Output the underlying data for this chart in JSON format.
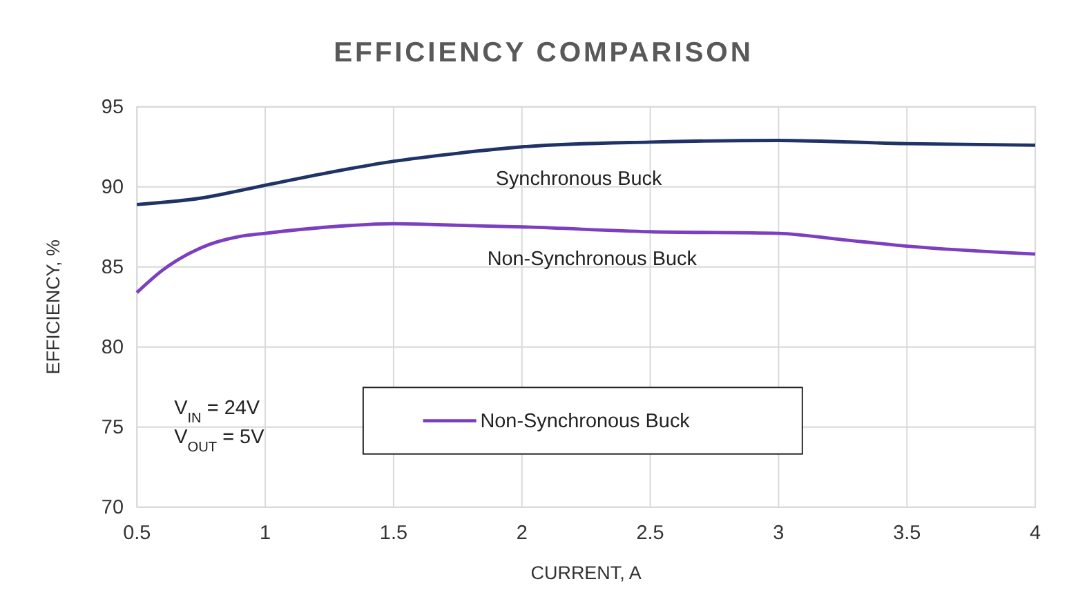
{
  "chart_data": {
    "type": "line",
    "title": "EFFICIENCY COMPARISON",
    "xlabel": "CURRENT, A",
    "ylabel": "EFFICIENCY, %",
    "series": [
      {
        "color": "#1f3366",
        "x": [
          0.5,
          0.75,
          1,
          1.25,
          1.5,
          1.75,
          2,
          2.5,
          3,
          3.5,
          4
        ],
        "values": [
          88.9,
          89.3,
          90.1,
          90.9,
          91.6,
          92.1,
          92.5,
          92.8,
          92.9,
          92.7,
          92.6
        ]
      },
      {
        "name": "Non-Synchronous Buck",
        "color": "#7b3fbf",
        "x": [
          0.5,
          0.6,
          0.75,
          0.9,
          1,
          1.25,
          1.5,
          1.75,
          2,
          2.5,
          3,
          3.25,
          3.5,
          4
        ],
        "values": [
          83.4,
          84.8,
          86.2,
          86.9,
          87.1,
          87.5,
          87.7,
          87.6,
          87.5,
          87.2,
          87.1,
          86.7,
          86.3,
          85.8
        ]
      }
    ],
    "annotations": [
      "Synchronous Buck",
      "Non-Synchronous Buck",
      "V$_{IN}$ = 24V",
      "V$_{OUT}$ = 5V"
    ],
    "xlim": [
      0.5,
      4
    ],
    "xticks": [
      0.5,
      1,
      1.5,
      2,
      2.5,
      3,
      3.5,
      4
    ],
    "ylim": [
      70,
      95
    ],
    "yticks": [
      70,
      75,
      80,
      85,
      90,
      95
    ],
    "grid": true,
    "legend": "bottom"
  }
}
